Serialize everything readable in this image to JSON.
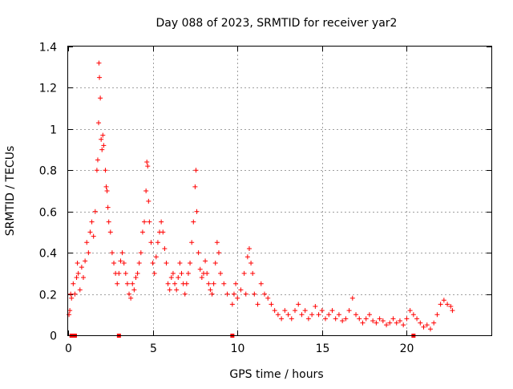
{
  "chart_data": {
    "type": "scatter",
    "title": "Day 088 of 2023, SRMTID for receiver yar2",
    "xlabel": "GPS time / hours",
    "ylabel": "SRMTID / TECUs",
    "xlim": [
      0,
      25
    ],
    "ylim": [
      0,
      1.4
    ],
    "xticks": [
      0,
      5,
      10,
      15,
      20
    ],
    "xtick_labels": [
      "0",
      "5",
      "10",
      "15",
      "20"
    ],
    "yticks": [
      0,
      0.2,
      0.4,
      0.6,
      0.8,
      1,
      1.2,
      1.4
    ],
    "ytick_labels": [
      "0",
      "0.2",
      "0.4",
      "0.6",
      "0.8",
      "1",
      "1.2",
      "1.4"
    ],
    "grid": true,
    "marker": "+",
    "color": "#ff0000",
    "series": [
      {
        "name": "SRMTID",
        "points": [
          [
            0.05,
            0.1
          ],
          [
            0.1,
            0.12
          ],
          [
            0.15,
            0.2
          ],
          [
            0.2,
            0.18
          ],
          [
            0.3,
            0.25
          ],
          [
            0.4,
            0.2
          ],
          [
            0.5,
            0.28
          ],
          [
            0.55,
            0.35
          ],
          [
            0.6,
            0.3
          ],
          [
            0.7,
            0.22
          ],
          [
            0.8,
            0.33
          ],
          [
            0.9,
            0.28
          ],
          [
            1.0,
            0.36
          ],
          [
            1.1,
            0.45
          ],
          [
            1.2,
            0.4
          ],
          [
            1.3,
            0.5
          ],
          [
            1.4,
            0.55
          ],
          [
            1.5,
            0.48
          ],
          [
            1.6,
            0.6
          ],
          [
            1.7,
            0.8
          ],
          [
            1.75,
            0.85
          ],
          [
            1.8,
            1.03
          ],
          [
            1.82,
            1.32
          ],
          [
            1.85,
            1.25
          ],
          [
            1.9,
            1.15
          ],
          [
            1.95,
            0.95
          ],
          [
            2.0,
            0.9
          ],
          [
            2.05,
            0.97
          ],
          [
            2.1,
            0.92
          ],
          [
            2.2,
            0.8
          ],
          [
            2.25,
            0.72
          ],
          [
            2.3,
            0.7
          ],
          [
            2.35,
            0.62
          ],
          [
            2.4,
            0.55
          ],
          [
            2.5,
            0.5
          ],
          [
            2.6,
            0.4
          ],
          [
            2.7,
            0.35
          ],
          [
            2.8,
            0.3
          ],
          [
            2.9,
            0.25
          ],
          [
            3.0,
            0.3
          ],
          [
            3.1,
            0.36
          ],
          [
            3.2,
            0.4
          ],
          [
            3.3,
            0.35
          ],
          [
            3.4,
            0.3
          ],
          [
            3.5,
            0.25
          ],
          [
            3.6,
            0.2
          ],
          [
            3.7,
            0.18
          ],
          [
            3.8,
            0.25
          ],
          [
            3.9,
            0.22
          ],
          [
            4.0,
            0.28
          ],
          [
            4.1,
            0.3
          ],
          [
            4.2,
            0.35
          ],
          [
            4.3,
            0.4
          ],
          [
            4.4,
            0.5
          ],
          [
            4.5,
            0.55
          ],
          [
            4.6,
            0.7
          ],
          [
            4.65,
            0.84
          ],
          [
            4.7,
            0.82
          ],
          [
            4.75,
            0.65
          ],
          [
            4.8,
            0.55
          ],
          [
            4.9,
            0.45
          ],
          [
            5.0,
            0.35
          ],
          [
            5.1,
            0.3
          ],
          [
            5.2,
            0.38
          ],
          [
            5.3,
            0.45
          ],
          [
            5.4,
            0.5
          ],
          [
            5.5,
            0.55
          ],
          [
            5.6,
            0.5
          ],
          [
            5.7,
            0.42
          ],
          [
            5.8,
            0.35
          ],
          [
            5.9,
            0.25
          ],
          [
            6.0,
            0.22
          ],
          [
            6.1,
            0.28
          ],
          [
            6.2,
            0.3
          ],
          [
            6.3,
            0.25
          ],
          [
            6.4,
            0.22
          ],
          [
            6.5,
            0.28
          ],
          [
            6.6,
            0.35
          ],
          [
            6.7,
            0.3
          ],
          [
            6.8,
            0.25
          ],
          [
            6.9,
            0.2
          ],
          [
            7.0,
            0.25
          ],
          [
            7.1,
            0.3
          ],
          [
            7.2,
            0.35
          ],
          [
            7.3,
            0.45
          ],
          [
            7.4,
            0.55
          ],
          [
            7.5,
            0.72
          ],
          [
            7.55,
            0.8
          ],
          [
            7.6,
            0.6
          ],
          [
            7.7,
            0.4
          ],
          [
            7.8,
            0.32
          ],
          [
            7.9,
            0.28
          ],
          [
            8.0,
            0.3
          ],
          [
            8.1,
            0.36
          ],
          [
            8.2,
            0.3
          ],
          [
            8.3,
            0.25
          ],
          [
            8.4,
            0.22
          ],
          [
            8.5,
            0.2
          ],
          [
            8.6,
            0.25
          ],
          [
            8.7,
            0.35
          ],
          [
            8.8,
            0.45
          ],
          [
            8.9,
            0.4
          ],
          [
            9.0,
            0.3
          ],
          [
            9.2,
            0.25
          ],
          [
            9.4,
            0.2
          ],
          [
            9.7,
            0.15
          ],
          [
            9.8,
            0.2
          ],
          [
            9.9,
            0.25
          ],
          [
            10.0,
            0.18
          ],
          [
            10.2,
            0.22
          ],
          [
            10.4,
            0.3
          ],
          [
            10.5,
            0.2
          ],
          [
            10.6,
            0.38
          ],
          [
            10.7,
            0.42
          ],
          [
            10.8,
            0.35
          ],
          [
            10.9,
            0.3
          ],
          [
            11.0,
            0.2
          ],
          [
            11.2,
            0.15
          ],
          [
            11.4,
            0.25
          ],
          [
            11.6,
            0.2
          ],
          [
            11.8,
            0.18
          ],
          [
            12.0,
            0.15
          ],
          [
            12.2,
            0.12
          ],
          [
            12.4,
            0.1
          ],
          [
            12.6,
            0.08
          ],
          [
            12.8,
            0.12
          ],
          [
            13.0,
            0.1
          ],
          [
            13.2,
            0.08
          ],
          [
            13.4,
            0.12
          ],
          [
            13.6,
            0.15
          ],
          [
            13.8,
            0.1
          ],
          [
            14.0,
            0.12
          ],
          [
            14.2,
            0.08
          ],
          [
            14.4,
            0.1
          ],
          [
            14.6,
            0.14
          ],
          [
            14.8,
            0.1
          ],
          [
            15.0,
            0.12
          ],
          [
            15.2,
            0.08
          ],
          [
            15.4,
            0.1
          ],
          [
            15.6,
            0.12
          ],
          [
            15.8,
            0.08
          ],
          [
            16.0,
            0.1
          ],
          [
            16.2,
            0.07
          ],
          [
            16.4,
            0.08
          ],
          [
            16.6,
            0.12
          ],
          [
            16.8,
            0.18
          ],
          [
            17.0,
            0.1
          ],
          [
            17.2,
            0.08
          ],
          [
            17.4,
            0.06
          ],
          [
            17.6,
            0.08
          ],
          [
            17.8,
            0.1
          ],
          [
            18.0,
            0.07
          ],
          [
            18.2,
            0.06
          ],
          [
            18.4,
            0.08
          ],
          [
            18.6,
            0.07
          ],
          [
            18.8,
            0.05
          ],
          [
            19.0,
            0.06
          ],
          [
            19.2,
            0.08
          ],
          [
            19.4,
            0.06
          ],
          [
            19.6,
            0.07
          ],
          [
            19.8,
            0.05
          ],
          [
            20.0,
            0.08
          ],
          [
            20.2,
            0.12
          ],
          [
            20.4,
            0.1
          ],
          [
            20.6,
            0.08
          ],
          [
            20.8,
            0.06
          ],
          [
            21.0,
            0.04
          ],
          [
            21.2,
            0.05
          ],
          [
            21.4,
            0.03
          ],
          [
            21.6,
            0.06
          ],
          [
            21.8,
            0.1
          ],
          [
            22.0,
            0.15
          ],
          [
            22.2,
            0.17
          ],
          [
            22.4,
            0.15
          ],
          [
            22.6,
            0.14
          ],
          [
            22.7,
            0.12
          ]
        ]
      }
    ],
    "axis_markers": [
      0.2,
      0.4,
      3.0,
      9.7,
      20.4
    ]
  }
}
